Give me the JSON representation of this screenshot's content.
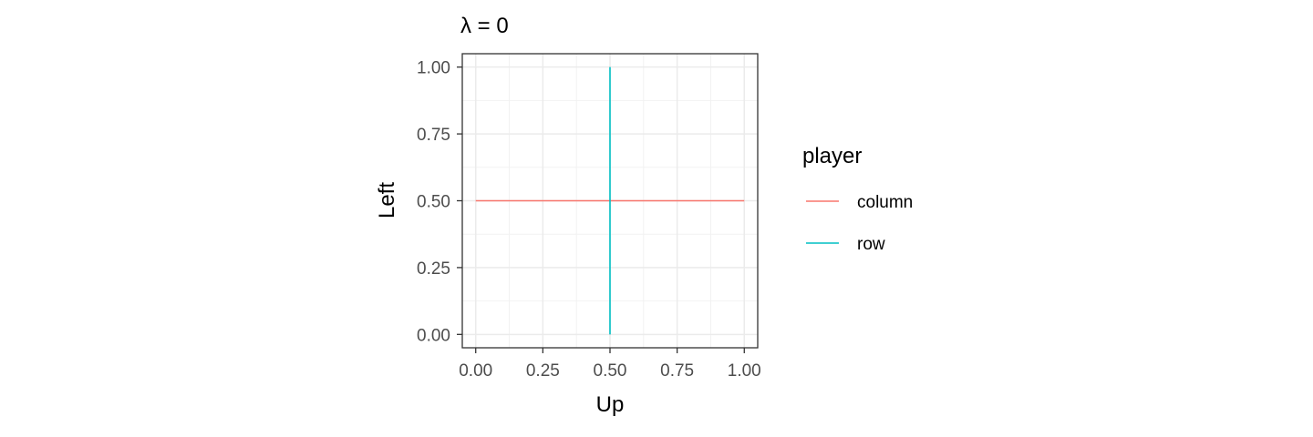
{
  "chart_data": {
    "type": "line",
    "title": "λ = 0",
    "xlabel": "Up",
    "ylabel": "Left",
    "xlim": [
      -0.05,
      1.05
    ],
    "ylim": [
      -0.05,
      1.05
    ],
    "xticks": [
      0,
      0.25,
      0.5,
      0.75,
      1
    ],
    "yticks": [
      0,
      0.25,
      0.5,
      0.75,
      1
    ],
    "xtick_labels": [
      "0.00",
      "0.25",
      "0.50",
      "0.75",
      "1.00"
    ],
    "ytick_labels": [
      "0.00",
      "0.25",
      "0.50",
      "0.75",
      "1.00"
    ],
    "grid": true,
    "legend": {
      "title": "player",
      "position": "right"
    },
    "series": [
      {
        "name": "column",
        "color": "#F8766D",
        "x": [
          0,
          1
        ],
        "y": [
          0.5,
          0.5
        ]
      },
      {
        "name": "row",
        "color": "#00BFC4",
        "x": [
          0.5,
          0.5
        ],
        "y": [
          0,
          1
        ]
      }
    ]
  }
}
